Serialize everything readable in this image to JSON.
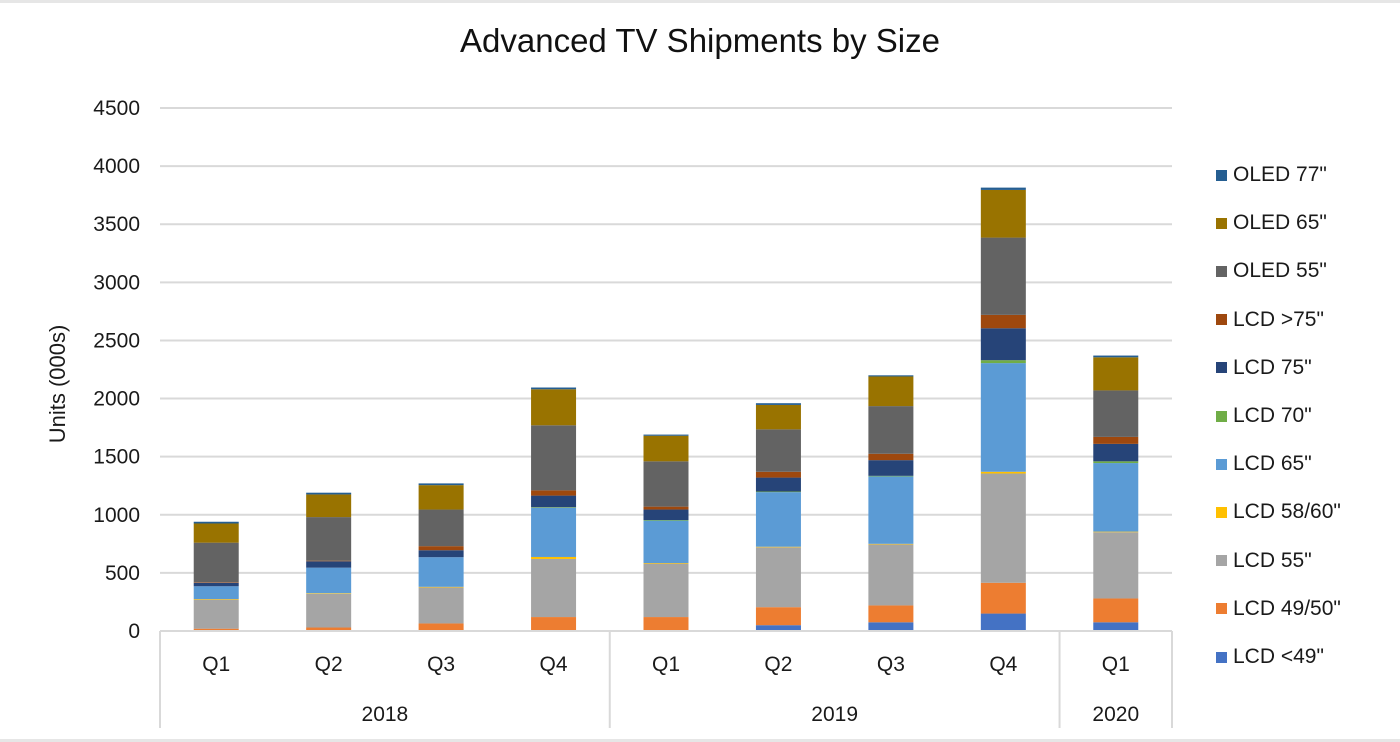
{
  "chart_data": {
    "type": "bar",
    "stacked": true,
    "title": "Advanced TV Shipments by Size",
    "xlabel": "",
    "ylabel": "Units (000s)",
    "ylim": [
      0,
      4500
    ],
    "yticks": [
      0,
      500,
      1000,
      1500,
      2000,
      2500,
      3000,
      3500,
      4000,
      4500
    ],
    "grid": true,
    "legend_position": "right",
    "categories": [
      "Q1",
      "Q2",
      "Q3",
      "Q4",
      "Q1",
      "Q2",
      "Q3",
      "Q4",
      "Q1"
    ],
    "category_groups": [
      {
        "label": "2018",
        "count": 4
      },
      {
        "label": "2019",
        "count": 4
      },
      {
        "label": "2020",
        "count": 1
      }
    ],
    "series": [
      {
        "name": "LCD <49\"",
        "color": "#4472c4",
        "values": [
          0,
          0,
          0,
          0,
          0,
          50,
          75,
          150,
          75
        ]
      },
      {
        "name": "LCD 49/50\"",
        "color": "#ed7d31",
        "values": [
          20,
          30,
          65,
          120,
          120,
          155,
          145,
          265,
          205
        ]
      },
      {
        "name": "LCD 55\"",
        "color": "#a5a5a5",
        "values": [
          250,
          290,
          310,
          500,
          460,
          515,
          525,
          940,
          570
        ]
      },
      {
        "name": "LCD 58/60\"",
        "color": "#ffc000",
        "values": [
          5,
          5,
          5,
          17,
          5,
          5,
          5,
          15,
          5
        ]
      },
      {
        "name": "LCD 65\"",
        "color": "#5b9bd5",
        "values": [
          110,
          220,
          255,
          423,
          365,
          470,
          580,
          935,
          590
        ]
      },
      {
        "name": "LCD 70\"",
        "color": "#70ad47",
        "values": [
          0,
          0,
          0,
          5,
          5,
          5,
          5,
          25,
          15
        ]
      },
      {
        "name": "LCD 75\"",
        "color": "#264478",
        "values": [
          30,
          55,
          60,
          100,
          90,
          120,
          135,
          275,
          150
        ]
      },
      {
        "name": "LCD >75\"",
        "color": "#9e480e",
        "values": [
          5,
          5,
          35,
          45,
          25,
          50,
          55,
          115,
          60
        ]
      },
      {
        "name": "OLED 55\"",
        "color": "#636363",
        "values": [
          340,
          375,
          315,
          560,
          390,
          365,
          410,
          665,
          400
        ]
      },
      {
        "name": "OLED 65\"",
        "color": "#997300",
        "values": [
          165,
          195,
          210,
          310,
          220,
          210,
          255,
          410,
          285
        ]
      },
      {
        "name": "OLED 77\"",
        "color": "#255e91",
        "values": [
          15,
          15,
          15,
          15,
          10,
          15,
          10,
          20,
          15
        ]
      }
    ]
  }
}
